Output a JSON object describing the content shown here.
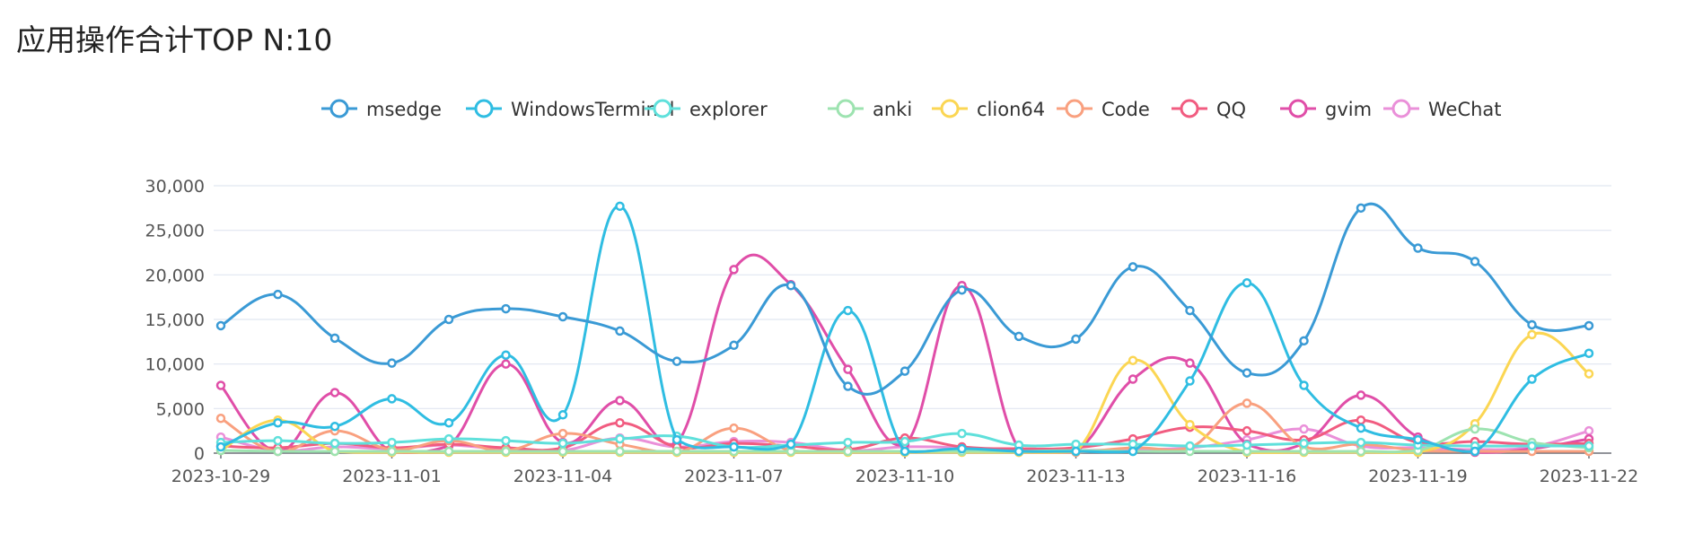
{
  "title": "应用操作合计TOP N:10",
  "chart_data": {
    "type": "line",
    "title": "应用操作合计TOP N:10",
    "x": [
      "2023-10-29",
      "2023-10-30",
      "2023-10-31",
      "2023-11-01",
      "2023-11-02",
      "2023-11-03",
      "2023-11-04",
      "2023-11-05",
      "2023-11-06",
      "2023-11-07",
      "2023-11-08",
      "2023-11-09",
      "2023-11-10",
      "2023-11-11",
      "2023-11-12",
      "2023-11-13",
      "2023-11-14",
      "2023-11-15",
      "2023-11-16",
      "2023-11-17",
      "2023-11-18",
      "2023-11-19",
      "2023-11-20",
      "2023-11-21",
      "2023-11-22"
    ],
    "x_tick_labels": [
      "2023-10-29",
      "2023-11-01",
      "2023-11-04",
      "2023-11-07",
      "2023-11-10",
      "2023-11-13",
      "2023-11-16",
      "2023-11-19",
      "2023-11-22"
    ],
    "y_ticks": [
      0,
      5000,
      10000,
      15000,
      20000,
      25000,
      30000
    ],
    "y_tick_labels": [
      "0",
      "5,000",
      "10,000",
      "15,000",
      "20,000",
      "25,000",
      "30,000"
    ],
    "ylim": [
      0,
      30000
    ],
    "grid": true,
    "legend_position": "top",
    "series": [
      {
        "name": "msedge",
        "color": "#3a9ad5",
        "values": [
          14300,
          17800,
          12900,
          10100,
          15000,
          16200,
          15300,
          13700,
          10300,
          12100,
          18800,
          7500,
          9200,
          18300,
          13100,
          12800,
          20900,
          16000,
          9000,
          12600,
          27500,
          23000,
          21500,
          14400,
          14300
        ]
      },
      {
        "name": "WindowsTerminal",
        "color": "#2fbde2",
        "values": [
          700,
          3400,
          3000,
          6100,
          3400,
          11000,
          4300,
          27700,
          1500,
          700,
          1000,
          16000,
          200,
          500,
          200,
          200,
          200,
          8100,
          19100,
          7600,
          2800,
          1500,
          200,
          8300,
          11200
        ]
      },
      {
        "name": "explorer",
        "color": "#5fe0db",
        "values": [
          1200,
          1400,
          1100,
          1200,
          1600,
          1400,
          1100,
          1600,
          1900,
          700,
          900,
          1200,
          1300,
          2200,
          900,
          1000,
          1000,
          800,
          900,
          1100,
          1200,
          900,
          800,
          800,
          800
        ]
      },
      {
        "name": "anki",
        "color": "#9de3b0",
        "values": [
          300,
          200,
          200,
          200,
          200,
          200,
          200,
          200,
          200,
          200,
          200,
          200,
          200,
          200,
          200,
          300,
          200,
          200,
          200,
          200,
          200,
          300,
          2700,
          1200,
          600
        ]
      },
      {
        "name": "clion64",
        "color": "#fbd653",
        "values": [
          300,
          3700,
          200,
          100,
          100,
          100,
          100,
          100,
          100,
          100,
          100,
          100,
          100,
          100,
          100,
          200,
          10400,
          3200,
          100,
          100,
          100,
          100,
          3300,
          13300,
          8900
        ]
      },
      {
        "name": "Code",
        "color": "#f9a07f",
        "values": [
          3900,
          200,
          2500,
          400,
          1400,
          300,
          2200,
          1000,
          100,
          2800,
          300,
          200,
          100,
          400,
          100,
          100,
          600,
          600,
          5600,
          700,
          1000,
          300,
          200,
          200,
          200
        ]
      },
      {
        "name": "QQ",
        "color": "#f15c80",
        "values": [
          800,
          600,
          1100,
          600,
          1000,
          600,
          600,
          3400,
          700,
          1100,
          800,
          400,
          1700,
          700,
          500,
          600,
          1600,
          2900,
          2500,
          1500,
          3700,
          1200,
          1300,
          1000,
          1100
        ]
      },
      {
        "name": "gvim",
        "color": "#e04ea8",
        "values": [
          7600,
          200,
          6800,
          100,
          800,
          10000,
          1200,
          5900,
          1100,
          20600,
          18900,
          9400,
          1000,
          18800,
          500,
          200,
          8300,
          10100,
          1000,
          1100,
          6500,
          1800,
          100,
          500,
          1600
        ]
      },
      {
        "name": "WeChat",
        "color": "#ea90d9",
        "values": [
          1800,
          300,
          700,
          500,
          900,
          400,
          300,
          1700,
          700,
          1300,
          1200,
          300,
          700,
          600,
          300,
          300,
          400,
          600,
          1500,
          2700,
          800,
          600,
          400,
          700,
          2500
        ]
      }
    ]
  }
}
